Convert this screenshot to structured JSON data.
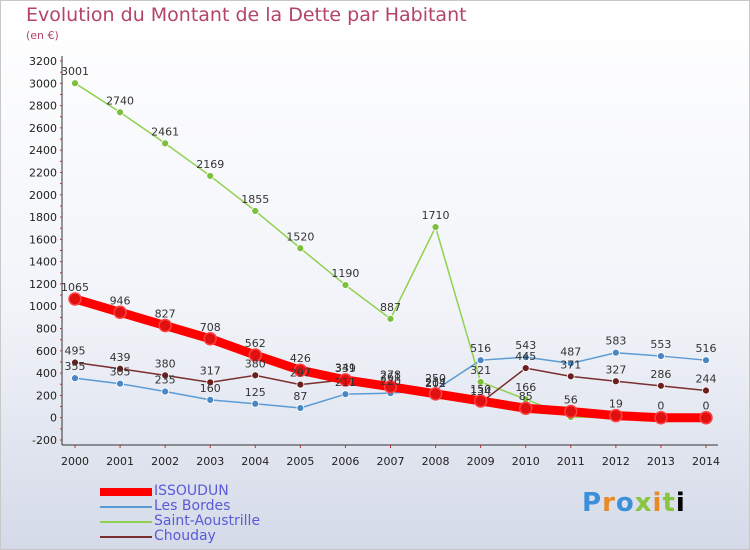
{
  "title": "Evolution du Montant de la Dette par Habitant",
  "subtitle": "(en €)",
  "logo": [
    "P",
    "r",
    "o",
    "x",
    "i",
    "t",
    "i"
  ],
  "chart_data": {
    "type": "line",
    "x": [
      "2000",
      "2001",
      "2002",
      "2003",
      "2004",
      "2005",
      "2006",
      "2007",
      "2008",
      "2009",
      "2010",
      "2011",
      "2012",
      "2013",
      "2014"
    ],
    "yticks": [
      -200,
      0,
      200,
      400,
      600,
      800,
      1000,
      1200,
      1400,
      1600,
      1800,
      2000,
      2200,
      2400,
      2600,
      2800,
      3000,
      3200
    ],
    "ylim": [
      -200,
      3200
    ],
    "legend_position": "bottom-left",
    "series": [
      {
        "name": "ISSOUDUN",
        "color": "#ff0000",
        "marker_color": "#e01010",
        "width": 9,
        "marker_r": 6,
        "values": [
          1065,
          946,
          827,
          708,
          562,
          426,
          339,
          278,
          214,
          150,
          85,
          56,
          19,
          0,
          0
        ],
        "labels": [
          "1065",
          "946",
          "827",
          "708",
          "562",
          "426",
          "339",
          "278",
          "214",
          "150",
          "85",
          "56",
          "19",
          "0",
          "0"
        ]
      },
      {
        "name": "Les Bordes",
        "color": "#5b9bd5",
        "marker_color": "#4a86c3",
        "width": 1.5,
        "marker_r": 3.5,
        "values": [
          355,
          305,
          235,
          160,
          125,
          87,
          211,
          220,
          250,
          516,
          543,
          487,
          583,
          553,
          516
        ],
        "labels": [
          "355",
          "305",
          "235",
          "160",
          "125",
          "87",
          "211",
          "220",
          "250",
          "516",
          "543",
          "487",
          "583",
          "553",
          "516"
        ]
      },
      {
        "name": "Saint-Aoustrille",
        "color": "#8fd14f",
        "marker_color": "#7cbf3a",
        "width": 1.5,
        "marker_r": 3.5,
        "values": [
          3001,
          2740,
          2461,
          2169,
          1855,
          1520,
          1190,
          887,
          1710,
          321,
          166,
          6,
          0,
          0,
          0
        ],
        "labels": [
          "3001",
          "2740",
          "2461",
          "2169",
          "1855",
          "1520",
          "1190",
          "887",
          "1710",
          "321",
          "166",
          "",
          "",
          "",
          ""
        ]
      },
      {
        "name": "Chouday",
        "color": "#7a2e2e",
        "marker_color": "#6b1f1f",
        "width": 1.5,
        "marker_r": 3.5,
        "values": [
          495,
          439,
          380,
          317,
          380,
          297,
          341,
          261,
          202,
          134,
          445,
          371,
          327,
          286,
          244
        ],
        "labels": [
          "495",
          "439",
          "380",
          "317",
          "380",
          "297",
          "341",
          "261",
          "202",
          "134",
          "445",
          "371",
          "327",
          "286",
          "244"
        ]
      }
    ]
  }
}
